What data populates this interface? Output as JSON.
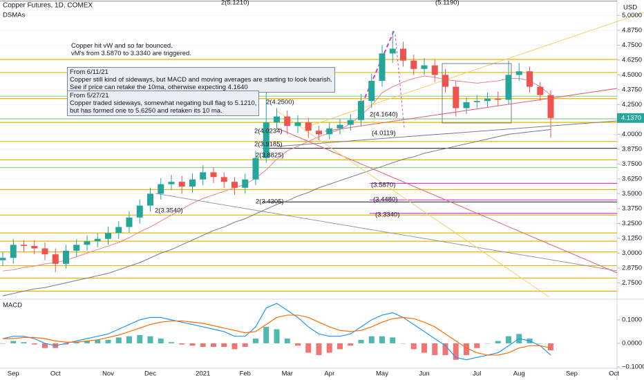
{
  "chart_data": [
    {
      "type": "candlestick",
      "title": "Copper Futures, 1D, COMEX",
      "subtitle": "DSMAs",
      "y_label": "USD",
      "categories": [
        null,
        "Sep",
        null,
        null,
        null,
        "Oct",
        null,
        null,
        null,
        null,
        "Nov",
        null,
        null,
        null,
        "Dec",
        null,
        null,
        null,
        null,
        "2021",
        null,
        null,
        null,
        "Feb",
        null,
        null,
        null,
        "Mar",
        null,
        null,
        null,
        "Apr",
        null,
        null,
        null,
        null,
        "May",
        null,
        null,
        null,
        "Jun",
        null,
        null,
        null,
        null,
        "Jul",
        null,
        null,
        null,
        "Aug",
        null,
        null,
        null,
        null,
        "Sep",
        null,
        null,
        null,
        "Oct"
      ],
      "open": [
        2.94,
        2.96,
        3.07,
        3.06,
        3.04,
        2.99,
        2.91,
        3.02,
        3.07,
        3.1,
        3.12,
        3.17,
        3.22,
        3.3,
        3.4,
        3.5,
        3.58,
        3.6,
        3.56,
        3.62,
        3.68,
        3.64,
        3.6,
        3.55,
        3.62,
        3.8,
        4.1,
        4.15,
        4.07,
        4.1,
        4.03,
        4.0,
        4.05,
        4.08,
        4.12,
        4.28,
        4.45,
        4.68,
        4.72,
        4.62,
        4.55,
        4.58,
        4.5,
        4.4,
        4.22,
        4.27,
        4.28,
        4.3,
        4.29,
        4.5,
        4.53,
        4.4,
        4.33,
        null,
        null,
        null,
        null,
        null,
        null
      ],
      "high": [
        3.01,
        3.12,
        3.11,
        3.11,
        3.09,
        3.04,
        3.07,
        3.12,
        3.15,
        3.17,
        3.22,
        3.27,
        3.35,
        3.45,
        3.55,
        3.63,
        3.66,
        3.65,
        3.67,
        3.74,
        3.72,
        3.68,
        3.64,
        3.67,
        3.86,
        4.36,
        4.22,
        4.2,
        4.16,
        4.14,
        4.07,
        4.1,
        4.13,
        4.17,
        4.34,
        4.51,
        4.75,
        4.87,
        4.78,
        4.67,
        4.64,
        4.63,
        4.55,
        4.45,
        4.31,
        4.33,
        4.35,
        4.36,
        4.62,
        4.6,
        4.57,
        4.44,
        4.37,
        null,
        null,
        null,
        null,
        null,
        null
      ],
      "low": [
        2.89,
        2.91,
        3.01,
        2.99,
        2.94,
        2.84,
        2.87,
        2.97,
        3.02,
        3.05,
        3.07,
        3.12,
        3.17,
        3.25,
        3.35,
        3.45,
        3.53,
        3.5,
        3.51,
        3.57,
        3.59,
        3.55,
        3.49,
        3.5,
        3.57,
        3.76,
        4.04,
        4.0,
        4.01,
        3.97,
        3.95,
        3.96,
        4.0,
        4.03,
        4.07,
        4.22,
        4.4,
        4.6,
        4.57,
        4.5,
        4.5,
        4.44,
        4.35,
        4.15,
        4.17,
        4.22,
        4.23,
        4.24,
        4.25,
        4.45,
        4.35,
        4.28,
        3.97,
        null,
        null,
        null,
        null,
        null,
        null
      ],
      "close": [
        2.96,
        3.07,
        3.06,
        3.04,
        2.99,
        2.91,
        3.02,
        3.07,
        3.1,
        3.12,
        3.17,
        3.22,
        3.3,
        3.4,
        3.5,
        3.58,
        3.6,
        3.56,
        3.62,
        3.68,
        3.64,
        3.6,
        3.55,
        3.62,
        3.8,
        4.1,
        4.15,
        4.07,
        4.1,
        4.03,
        4.0,
        4.05,
        4.08,
        4.12,
        4.28,
        4.45,
        4.68,
        4.72,
        4.62,
        4.55,
        4.58,
        4.5,
        4.4,
        4.22,
        4.27,
        4.28,
        4.3,
        4.29,
        4.5,
        4.53,
        4.4,
        4.33,
        4.137,
        null,
        null,
        null,
        null,
        null,
        null
      ],
      "up_color": "#26a69a",
      "down_color": "#ef5350",
      "lines": [
        {
          "color": "#f0808a",
          "values": [
            2.85,
            2.86,
            2.88,
            2.89,
            2.91,
            2.92,
            2.94,
            2.97,
            3.0,
            3.03,
            3.06,
            3.09,
            3.13,
            3.18,
            3.22,
            3.27,
            3.32,
            3.37,
            3.42,
            3.46,
            3.49,
            3.52,
            3.55,
            3.58,
            3.63,
            3.7,
            3.79,
            3.86,
            3.9,
            3.94,
            3.98,
            4.01,
            4.04,
            4.09,
            4.16,
            4.24,
            4.35,
            4.4,
            4.44,
            4.47,
            4.49,
            4.48,
            4.46,
            4.45,
            4.44,
            4.43,
            4.44,
            4.45,
            4.47,
            4.47,
            4.45,
            4.4,
            4.33,
            null,
            null,
            null,
            null,
            null,
            null
          ]
        },
        {
          "color": "#787b86",
          "values": [
            2.64,
            2.66,
            2.68,
            2.7,
            2.71,
            2.73,
            2.75,
            2.77,
            2.79,
            2.81,
            2.83,
            2.86,
            2.89,
            2.92,
            2.96,
            3.0,
            3.03,
            3.07,
            3.11,
            3.15,
            3.19,
            3.22,
            3.26,
            3.29,
            3.33,
            3.37,
            3.41,
            3.44,
            3.48,
            3.51,
            3.55,
            3.58,
            3.61,
            3.64,
            3.67,
            3.7,
            3.73,
            3.76,
            3.79,
            3.81,
            3.84,
            3.86,
            3.88,
            3.9,
            3.92,
            3.94,
            3.96,
            3.98,
            4.0,
            4.01,
            4.02,
            4.03,
            4.04,
            null,
            null,
            null,
            null,
            null,
            null
          ]
        }
      ],
      "ylim": [
        2.63,
        5.13
      ],
      "yticks": [
        {
          "value": 5,
          "label": "5.0000"
        },
        {
          "value": 4.875,
          "label": "4.8750"
        },
        {
          "value": 4.75,
          "label": "4.7500"
        },
        {
          "value": 4.625,
          "label": "4.6250"
        },
        {
          "value": 4.5,
          "label": "4.5000"
        },
        {
          "value": 4.375,
          "label": "4.3750"
        },
        {
          "value": 4.25,
          "label": "4.2500"
        },
        {
          "value": 4.125,
          "label": "4.1250"
        },
        {
          "value": 4,
          "label": "4.0000"
        },
        {
          "value": 3.875,
          "label": "3.8750"
        },
        {
          "value": 3.75,
          "label": "3.7500"
        },
        {
          "value": 3.625,
          "label": "3.6250"
        },
        {
          "value": 3.5,
          "label": "3.5000"
        },
        {
          "value": 3.375,
          "label": "3.3750"
        },
        {
          "value": 3.25,
          "label": "3.2500"
        },
        {
          "value": 3.125,
          "label": "3.1250"
        },
        {
          "value": 3,
          "label": "3.0000"
        },
        {
          "value": 2.875,
          "label": "2.8750"
        },
        {
          "value": 2.75,
          "label": "2.7500"
        }
      ],
      "grid": true,
      "last_price": {
        "value": 4.137,
        "label": "4.1370"
      },
      "levels": [
        {
          "value": 5.121,
          "color": "#9598a1"
        },
        {
          "value": 4.63,
          "color": "#e8b400"
        },
        {
          "value": 4.52,
          "color": "#e8b400"
        },
        {
          "value": 4.3,
          "color": "#e8b400"
        },
        {
          "value": 4.1,
          "color": "#e8b400"
        },
        {
          "value": 3.94,
          "color": "#e8b400"
        },
        {
          "value": 3.785,
          "color": "#e8b400"
        },
        {
          "value": 3.535,
          "color": "#e8b400"
        },
        {
          "value": 3.32,
          "color": "#e8b400"
        },
        {
          "value": 3.17,
          "color": "#e8b400"
        },
        {
          "value": 3.1,
          "color": "#e8b400"
        },
        {
          "value": 3.01,
          "color": "#e8b400"
        },
        {
          "value": 2.895,
          "color": "#e8b400"
        },
        {
          "value": 2.79,
          "color": "#e8b400"
        },
        {
          "value": 2.68,
          "color": "#e8b400"
        },
        {
          "value": 4.32,
          "color": "#8fd18f"
        },
        {
          "value": 4.13,
          "color": "#8fd18f"
        },
        {
          "value": 3.72,
          "color": "#8fd18f"
        },
        {
          "value": 3.587,
          "color": "#d63ad6"
        },
        {
          "value": 3.448,
          "color": "#d63ad6"
        },
        {
          "value": 3.334,
          "color": "#d63ad6"
        },
        {
          "value": 3.8825,
          "color": "#333333"
        },
        {
          "value": 3.4305,
          "color": "#333333"
        }
      ],
      "annotations": [
        {
          "text": "2(5.1210)",
          "color": "#787b86"
        },
        {
          "text": "(5.1190)",
          "color": "#787b86"
        },
        {
          "text": "2(4.2500)",
          "color": "#c9a000"
        },
        {
          "text": "2(4.1640)",
          "color": "#c9a000"
        },
        {
          "text": "(4.0119)",
          "color": "#c9a000"
        },
        {
          "text": "2(4.0234)",
          "color": "#c9a000"
        },
        {
          "text": "2(3.9185)",
          "color": "#c9a000"
        },
        {
          "text": "2(3.8825)",
          "color": "#333333"
        },
        {
          "text": "(3.5870)",
          "color": "#d63ad6"
        },
        {
          "text": "2(3.4305)",
          "color": "#333333"
        },
        {
          "text": "(3.4480)",
          "color": "#d63ad6"
        },
        {
          "text": "2(3.3540)",
          "color": "#787b86"
        },
        {
          "text": "(3.3340)",
          "color": "#d63ad6"
        }
      ],
      "notes": [
        {
          "lines": [
            "Copper hit vW and so far bounced.",
            "vM's from 3.5870 to 3.3340 are triggered."
          ]
        },
        {
          "title": "From 6/11/21",
          "lines": [
            "Copper still kind of sideways, but MACD and moving averages are starting to look bearish.",
            "See if price can retake the 10ma, otherwise expecting 4.1640"
          ]
        },
        {
          "title": "From 5/27/21",
          "lines": [
            "Copper traded sideways, somewhat negating bull flag to 5.1210,",
            "but has formed one to 5.6250 and retaken its 10 ma."
          ]
        }
      ]
    },
    {
      "type": "macd",
      "title": "MACD",
      "macd": {
        "color": "#2196f3",
        "values": [
          0.02,
          0.03,
          0.03,
          0.02,
          0.0,
          -0.01,
          0.0,
          0.01,
          0.02,
          0.03,
          0.04,
          0.06,
          0.08,
          0.1,
          0.11,
          0.11,
          0.1,
          0.09,
          0.08,
          0.07,
          0.06,
          0.05,
          0.03,
          0.03,
          0.07,
          0.15,
          0.17,
          0.14,
          0.11,
          0.07,
          0.04,
          0.03,
          0.03,
          0.04,
          0.07,
          0.1,
          0.12,
          0.13,
          0.11,
          0.08,
          0.05,
          0.02,
          -0.01,
          -0.06,
          -0.07,
          -0.06,
          -0.05,
          -0.04,
          -0.01,
          0.02,
          0.01,
          -0.01,
          -0.05
        ]
      },
      "signal": {
        "color": "#ff6d00",
        "values": [
          0.02,
          0.02,
          0.025,
          0.025,
          0.02,
          0.01,
          0.005,
          0.005,
          0.01,
          0.015,
          0.025,
          0.035,
          0.05,
          0.065,
          0.08,
          0.09,
          0.095,
          0.095,
          0.09,
          0.085,
          0.075,
          0.065,
          0.055,
          0.045,
          0.05,
          0.08,
          0.11,
          0.12,
          0.12,
          0.11,
          0.09,
          0.07,
          0.055,
          0.05,
          0.055,
          0.07,
          0.09,
          0.105,
          0.11,
          0.105,
          0.09,
          0.07,
          0.04,
          0.01,
          -0.02,
          -0.04,
          -0.05,
          -0.05,
          -0.04,
          -0.02,
          -0.01,
          -0.01,
          -0.02
        ]
      },
      "histogram": {
        "up_color": "#26a69a",
        "down_color": "#ef5350",
        "values": [
          0,
          0.01,
          0.005,
          -0.005,
          -0.02,
          -0.02,
          -0.005,
          0.005,
          0.01,
          0.015,
          0.015,
          0.025,
          0.03,
          0.035,
          0.03,
          0.02,
          0.005,
          -0.005,
          -0.01,
          -0.015,
          -0.015,
          -0.015,
          -0.025,
          -0.015,
          0.02,
          0.07,
          0.06,
          0.02,
          -0.01,
          -0.04,
          -0.05,
          -0.04,
          -0.025,
          -0.01,
          0.015,
          0.03,
          0.03,
          0.025,
          0,
          -0.025,
          -0.04,
          -0.05,
          -0.05,
          -0.07,
          -0.05,
          -0.02,
          0,
          0.01,
          0.03,
          0.04,
          0.02,
          0,
          -0.03
        ]
      },
      "ylim": [
        -0.106,
        0.176
      ],
      "yticks": [
        {
          "value": 0.1,
          "label": "0.1000"
        },
        {
          "value": 0,
          "label": "0.0000"
        },
        {
          "value": -0.1,
          "label": "−0.1000"
        }
      ]
    }
  ]
}
